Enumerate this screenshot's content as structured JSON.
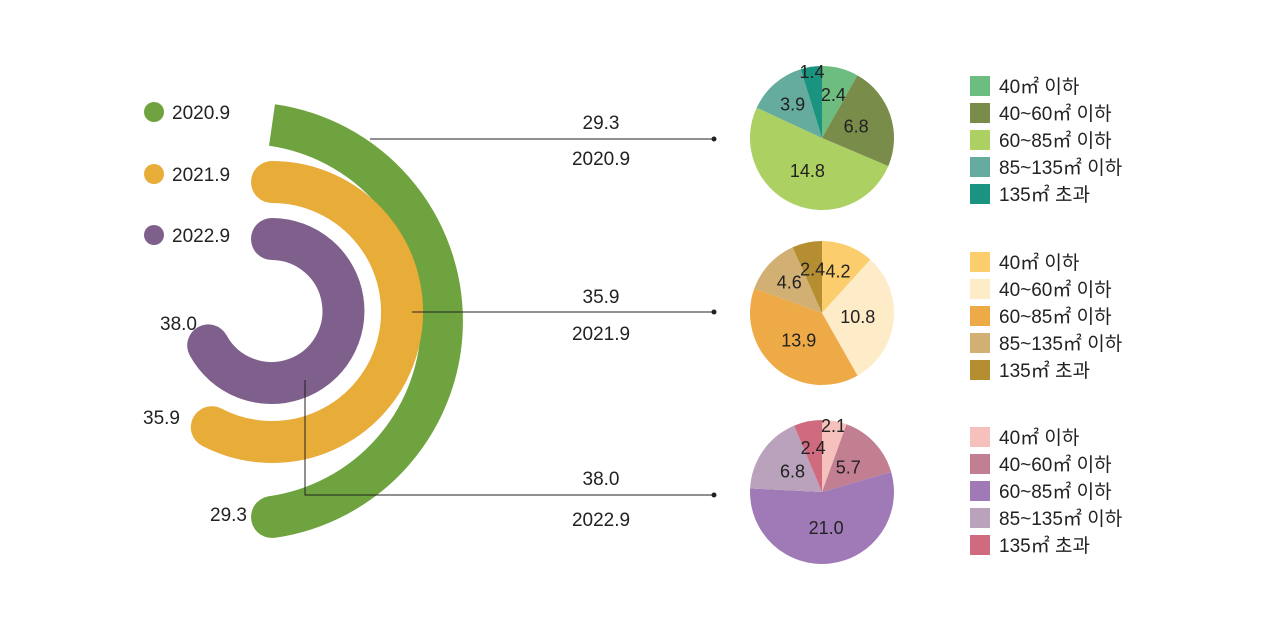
{
  "radial": {
    "periods": [
      {
        "label": "2020.9",
        "value": 29.3,
        "color": "#6fa33f"
      },
      {
        "label": "2021.9",
        "value": 35.9,
        "color": "#e8ac38"
      },
      {
        "label": "2022.9",
        "value": 38.0,
        "color": "#7f5f8b"
      }
    ]
  },
  "chart_data": [
    {
      "type": "pie",
      "title": "2020.9",
      "total": 29.3,
      "categories": [
        "40㎡ 이하",
        "40~60㎡ 이하",
        "60~85㎡ 이하",
        "85~135㎡ 이하",
        "135㎡ 초과"
      ],
      "values": [
        2.4,
        6.8,
        14.8,
        3.9,
        1.4
      ],
      "colors": [
        "#6cbd7f",
        "#7a8c4a",
        "#acd062",
        "#65ac9f",
        "#1a9480"
      ]
    },
    {
      "type": "pie",
      "title": "2021.9",
      "total": 35.9,
      "categories": [
        "40㎡ 이하",
        "40~60㎡ 이하",
        "60~85㎡ 이하",
        "85~135㎡ 이하",
        "135㎡ 초과"
      ],
      "values": [
        4.2,
        10.8,
        13.9,
        4.6,
        2.4
      ],
      "colors": [
        "#fbcd6c",
        "#feebc7",
        "#eeaa46",
        "#d2b073",
        "#b58e32"
      ]
    },
    {
      "type": "pie",
      "title": "2022.9",
      "total": 38.0,
      "categories": [
        "40㎡ 이하",
        "40~60㎡ 이하",
        "60~85㎡ 이하",
        "85~135㎡ 이하",
        "135㎡ 초과"
      ],
      "values": [
        2.1,
        5.7,
        21.0,
        6.8,
        2.4
      ],
      "colors": [
        "#f6c0bd",
        "#c17f91",
        "#a07ab6",
        "#baa2bd",
        "#d06a7e"
      ]
    }
  ]
}
